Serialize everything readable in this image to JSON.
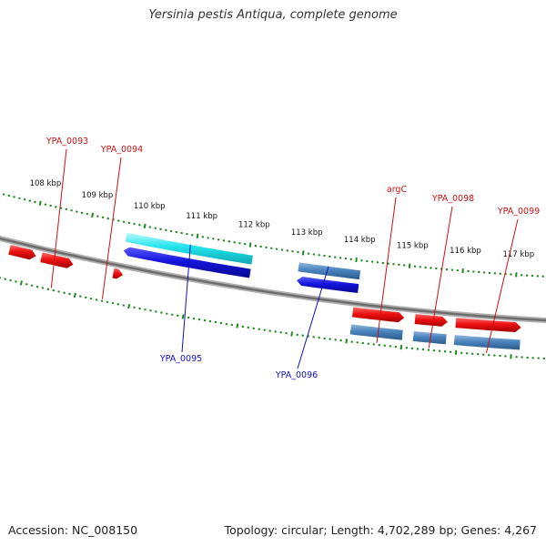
{
  "title": "Yersinia pestis Antiqua, complete genome",
  "footer": {
    "accession": "Accession: NC_008150",
    "summary": "Topology: circular; Length: 4,702,289 bp; Genes: 4,267"
  },
  "colors": {
    "forward_gene": "#ee1111",
    "forward_rna": "#4a84bd",
    "reverse_gene": "#1515dd",
    "reverse_highlight": "#22e3ec",
    "reverse_rna": "#4a84bd",
    "tick": "#1e8a1e",
    "backbone": "#8a8a8a",
    "forward_label": "#cc1111",
    "reverse_label": "#1111bb"
  },
  "scale": {
    "unit": "kbp",
    "labels": [
      "108 kbp",
      "109 kbp",
      "110 kbp",
      "111 kbp",
      "112 kbp",
      "113 kbp",
      "114 kbp",
      "115 kbp",
      "116 kbp",
      "117 kbp"
    ]
  },
  "genes_forward": [
    {
      "id": "fwd-1",
      "start": 107.65,
      "end": 108.15,
      "kind": "gene"
    },
    {
      "id": "fwd-2",
      "start": 108.25,
      "end": 108.85,
      "kind": "gene"
    },
    {
      "id": "fwd-3",
      "start": 109.6,
      "end": 109.78,
      "kind": "gene"
    },
    {
      "id": "fwd-argC",
      "start": 114.05,
      "end": 115.0,
      "kind": "gene"
    },
    {
      "id": "fwd-ypa0098",
      "start": 115.2,
      "end": 115.8,
      "kind": "gene"
    },
    {
      "id": "fwd-ypa0099",
      "start": 115.95,
      "end": 117.15,
      "kind": "gene"
    },
    {
      "id": "rna-1",
      "start": 114.05,
      "end": 115.0,
      "kind": "rna"
    },
    {
      "id": "rna-2",
      "start": 115.2,
      "end": 115.8,
      "kind": "rna"
    },
    {
      "id": "rna-3",
      "start": 115.95,
      "end": 117.15,
      "kind": "rna"
    }
  ],
  "genes_reverse": [
    {
      "id": "rev-ypa0095",
      "start": 109.7,
      "end": 112.08,
      "kind": "gene"
    },
    {
      "id": "rev-ypa0095-hl",
      "start": 109.7,
      "end": 112.08,
      "kind": "highlight"
    },
    {
      "id": "rev-ypa0096",
      "start": 112.95,
      "end": 114.1,
      "kind": "gene"
    },
    {
      "id": "rev-ypa0096-rna",
      "start": 112.95,
      "end": 114.1,
      "kind": "rna"
    }
  ],
  "labels_forward": [
    {
      "text": "YPA_0093",
      "pos": 108.55
    },
    {
      "text": "YPA_0094",
      "pos": 109.5
    },
    {
      "text": "argC",
      "pos": 114.55
    },
    {
      "text": "YPA_0098",
      "pos": 115.5
    },
    {
      "text": "YPA_0099",
      "pos": 116.55
    }
  ],
  "labels_reverse": [
    {
      "text": "YPA_0095",
      "pos": 110.9
    },
    {
      "text": "YPA_0096",
      "pos": 113.5
    }
  ]
}
